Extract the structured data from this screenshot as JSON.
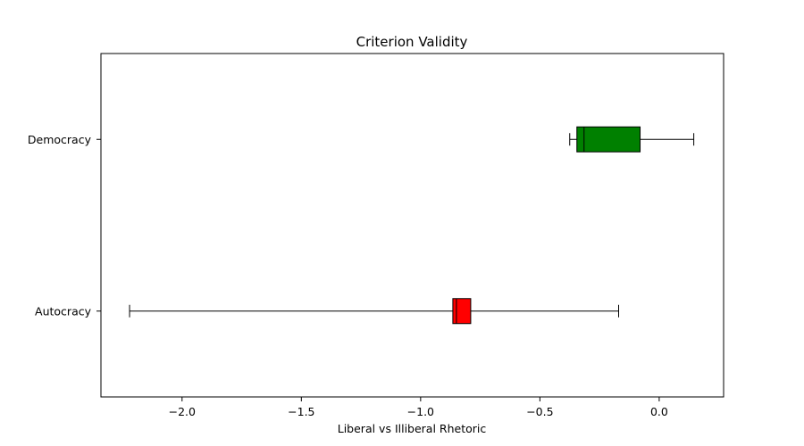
{
  "chart_data": {
    "type": "boxplot",
    "orientation": "horizontal",
    "title": "Criterion Validity",
    "xlabel": "Liberal vs Illiberal Rhetoric",
    "ylabel": "",
    "xlim": [
      -2.34,
      0.27
    ],
    "xticks": [
      -2.0,
      -1.5,
      -1.0,
      -0.5,
      0.0
    ],
    "xtick_labels": [
      "−2.0",
      "−1.5",
      "−1.0",
      "−0.5",
      "0.0"
    ],
    "grid": false,
    "categories": [
      "Autocracy",
      "Democracy"
    ],
    "boxes": [
      {
        "category": "Autocracy",
        "color": "#ff0000",
        "whisker_low": -2.22,
        "q1": -0.865,
        "median": -0.85,
        "q3": -0.79,
        "whisker_high": -0.17
      },
      {
        "category": "Democracy",
        "color": "#008000",
        "whisker_low": -0.375,
        "q1": -0.345,
        "median": -0.315,
        "q3": -0.08,
        "whisker_high": 0.145
      }
    ]
  }
}
